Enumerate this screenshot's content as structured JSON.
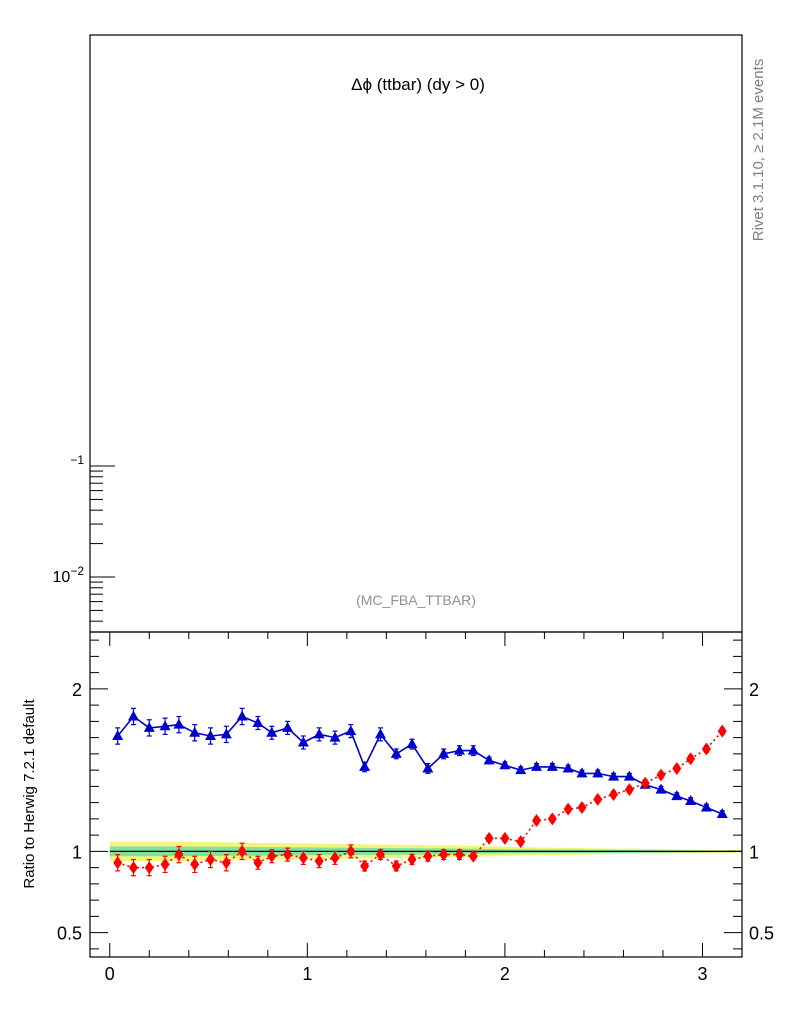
{
  "chart_data": [
    {
      "panel": "main",
      "type": "line",
      "title": "Δϕ (ttbar) (dy > 0)",
      "side_label": "Rivet 3.1.10, ≥ 2.1M events",
      "watermark": "(MC_FBA_TTBAR)",
      "yscale": "log",
      "ytick_labels": [
        {
          "value": 0.1,
          "base": "",
          "exp": "−1"
        },
        {
          "value": 0.01,
          "base": "10",
          "exp": "−2"
        }
      ]
    },
    {
      "panel": "ratio",
      "type": "line",
      "ylabel": "Ratio to Herwig 7.2.1 default",
      "xlim": [
        -0.1,
        3.2
      ],
      "ylim": [
        0.35,
        2.35
      ],
      "xticks": [
        0,
        1,
        2,
        3
      ],
      "xtick_labels": [
        "0",
        "1",
        "2",
        "3"
      ],
      "yticks": [
        0.5,
        1,
        2
      ],
      "ytick_labels": [
        "0.5",
        "1",
        "2"
      ],
      "reference_line": 1.0,
      "band": {
        "x": [
          0.0,
          0.3,
          0.6,
          0.9,
          1.2,
          1.5,
          1.8,
          2.1,
          2.4,
          2.7,
          3.0,
          3.2
        ],
        "yellow_half_width": [
          0.06,
          0.06,
          0.055,
          0.05,
          0.045,
          0.04,
          0.035,
          0.025,
          0.02,
          0.015,
          0.01,
          0.008
        ],
        "green_half_width": [
          0.03,
          0.03,
          0.028,
          0.025,
          0.022,
          0.02,
          0.017,
          0.012,
          0.01,
          0.008,
          0.005,
          0.004
        ],
        "yellow_color": "#f2f57a",
        "green_color": "#7fe39f"
      },
      "series": [
        {
          "marker": "triangle",
          "line_style": "solid",
          "color": "#0000cc",
          "x": [
            0.04,
            0.12,
            0.2,
            0.28,
            0.35,
            0.43,
            0.51,
            0.59,
            0.67,
            0.75,
            0.82,
            0.9,
            0.98,
            1.06,
            1.14,
            1.22,
            1.29,
            1.37,
            1.45,
            1.53,
            1.61,
            1.69,
            1.77,
            1.84,
            1.92,
            2.0,
            2.08,
            2.16,
            2.24,
            2.32,
            2.39,
            2.47,
            2.55,
            2.63,
            2.71,
            2.79,
            2.87,
            2.94,
            3.02,
            3.1
          ],
          "y": [
            1.71,
            1.83,
            1.76,
            1.77,
            1.78,
            1.73,
            1.71,
            1.72,
            1.83,
            1.79,
            1.73,
            1.76,
            1.67,
            1.72,
            1.7,
            1.74,
            1.52,
            1.72,
            1.6,
            1.66,
            1.51,
            1.6,
            1.62,
            1.62,
            1.56,
            1.53,
            1.5,
            1.52,
            1.52,
            1.51,
            1.48,
            1.48,
            1.46,
            1.46,
            1.41,
            1.38,
            1.34,
            1.31,
            1.27,
            1.23
          ],
          "yerr": [
            0.05,
            0.05,
            0.05,
            0.05,
            0.05,
            0.05,
            0.05,
            0.05,
            0.05,
            0.04,
            0.04,
            0.04,
            0.04,
            0.04,
            0.04,
            0.04,
            0.03,
            0.04,
            0.03,
            0.03,
            0.03,
            0.03,
            0.03,
            0.03,
            0.02,
            0.02,
            0.02,
            0.02,
            0.02,
            0.02,
            0.02,
            0.02,
            0.02,
            0.02,
            0.02,
            0.02,
            0.02,
            0.02,
            0.02,
            0.02
          ]
        },
        {
          "marker": "diamond",
          "line_style": "dotted",
          "color": "#ff0000",
          "x": [
            0.04,
            0.12,
            0.2,
            0.28,
            0.35,
            0.43,
            0.51,
            0.59,
            0.67,
            0.75,
            0.82,
            0.9,
            0.98,
            1.06,
            1.14,
            1.22,
            1.29,
            1.37,
            1.45,
            1.53,
            1.61,
            1.69,
            1.77,
            1.84,
            1.92,
            2.0,
            2.08,
            2.16,
            2.24,
            2.32,
            2.39,
            2.47,
            2.55,
            2.63,
            2.71,
            2.79,
            2.87,
            2.94,
            3.02,
            3.1
          ],
          "y": [
            0.93,
            0.9,
            0.9,
            0.92,
            0.98,
            0.92,
            0.95,
            0.93,
            1.0,
            0.93,
            0.97,
            0.98,
            0.96,
            0.94,
            0.96,
            1.0,
            0.91,
            0.98,
            0.91,
            0.95,
            0.97,
            0.98,
            0.98,
            0.97,
            1.08,
            1.08,
            1.06,
            1.19,
            1.2,
            1.26,
            1.27,
            1.32,
            1.35,
            1.38,
            1.42,
            1.47,
            1.51,
            1.57,
            1.63,
            1.74
          ],
          "yerr": [
            0.05,
            0.05,
            0.05,
            0.05,
            0.05,
            0.05,
            0.05,
            0.05,
            0.05,
            0.04,
            0.04,
            0.04,
            0.04,
            0.04,
            0.04,
            0.04,
            0.03,
            0.03,
            0.03,
            0.03,
            0.03,
            0.03,
            0.03,
            0.02,
            0.02,
            0.02,
            0.02,
            0.02,
            0.02,
            0.02,
            0.02,
            0.02,
            0.02,
            0.02,
            0.02,
            0.02,
            0.02,
            0.02,
            0.02,
            0.02
          ]
        }
      ]
    }
  ]
}
